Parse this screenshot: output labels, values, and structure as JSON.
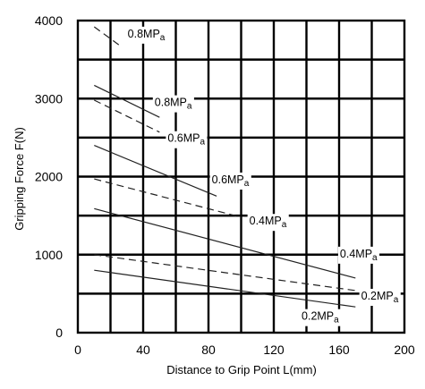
{
  "chart_data": {
    "type": "line",
    "xlabel": "Distance to Grip Point  L(mm)",
    "ylabel": "Gripping Force  F(N)",
    "xlim": [
      0,
      200
    ],
    "ylim": [
      0,
      4000
    ],
    "x_ticks": [
      "0",
      "40",
      "80",
      "120",
      "160",
      "200"
    ],
    "y_ticks": [
      "0",
      "1000",
      "2000",
      "3000",
      "4000"
    ],
    "grid": true,
    "series": [
      {
        "name": "0.8MPa",
        "style": "dashed",
        "x": [
          10,
          27
        ],
        "y": [
          3920,
          3660
        ]
      },
      {
        "name": "0.8MPa",
        "style": "solid",
        "x": [
          10,
          50
        ],
        "y": [
          3170,
          2760
        ]
      },
      {
        "name": "0.6MPa",
        "style": "dashed",
        "x": [
          10,
          50
        ],
        "y": [
          2980,
          2570
        ]
      },
      {
        "name": "0.6MPa",
        "style": "solid",
        "x": [
          10,
          85
        ],
        "y": [
          2400,
          1750
        ]
      },
      {
        "name": "0.4MPa",
        "style": "dashed",
        "x": [
          10,
          100
        ],
        "y": [
          1970,
          1480
        ]
      },
      {
        "name": "0.4MPa",
        "style": "solid",
        "x": [
          10,
          170
        ],
        "y": [
          1590,
          700
        ]
      },
      {
        "name": "0.2MPa",
        "style": "dashed",
        "x": [
          10,
          170
        ],
        "y": [
          1000,
          540
        ]
      },
      {
        "name": "0.2MPa",
        "style": "solid",
        "x": [
          10,
          170
        ],
        "y": [
          800,
          330
        ]
      }
    ],
    "labels": [
      {
        "main": "0.8MP",
        "sub": "a",
        "x": 30.5,
        "y": 3830
      },
      {
        "main": "0.8MP",
        "sub": "a",
        "x": 47,
        "y": 2950
      },
      {
        "main": "0.6MP",
        "sub": "a",
        "x": 55,
        "y": 2490
      },
      {
        "main": "0.6MP",
        "sub": "a",
        "x": 82,
        "y": 1960
      },
      {
        "main": "0.4MP",
        "sub": "a",
        "x": 105,
        "y": 1430
      },
      {
        "main": "0.4MP",
        "sub": "a",
        "x": 160.5,
        "y": 1010
      },
      {
        "main": "0.2MP",
        "sub": "a",
        "x": 173.5,
        "y": 470
      },
      {
        "main": "0.2MP",
        "sub": "a",
        "x": 137,
        "y": 210
      }
    ]
  }
}
